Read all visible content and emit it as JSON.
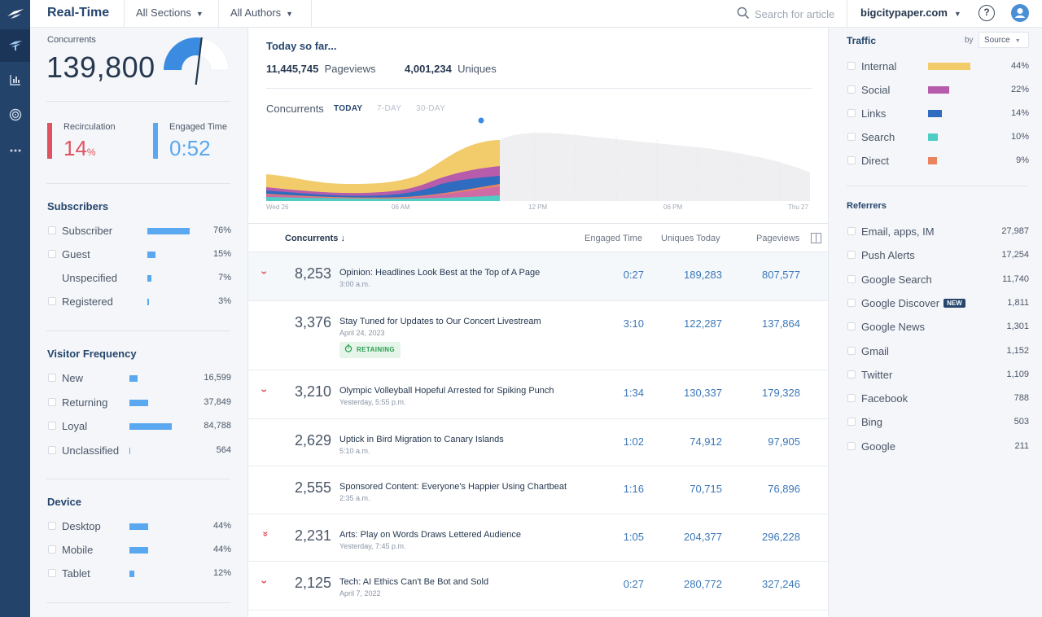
{
  "app": {
    "title": "Real-Time"
  },
  "topbar": {
    "sections_label": "All Sections",
    "authors_label": "All Authors",
    "search_placeholder": "Search for article",
    "site_label": "bigcitypaper.com",
    "help_label": "?"
  },
  "left": {
    "concurrents_label": "Concurrents",
    "concurrents_value": "139,800",
    "gauge_level": 0.55,
    "recirculation_label": "Recirculation",
    "recirculation_value": "14",
    "recirculation_unit": "%",
    "engaged_label": "Engaged Time",
    "engaged_value": "0:52",
    "subscribers": {
      "title": "Subscribers",
      "rows": [
        {
          "label": "Subscriber",
          "value": "76%",
          "fill": 0.76
        },
        {
          "label": "Guest",
          "value": "15%",
          "fill": 0.15
        },
        {
          "label": "Unspecified",
          "value": "7%",
          "fill": 0.07
        },
        {
          "label": "Registered",
          "value": "3%",
          "fill": 0.03
        }
      ]
    },
    "frequency": {
      "title": "Visitor Frequency",
      "rows": [
        {
          "label": "New",
          "value": "16,599",
          "fill": 0.2
        },
        {
          "label": "Returning",
          "value": "37,849",
          "fill": 0.45
        },
        {
          "label": "Loyal",
          "value": "84,788",
          "fill": 1.0
        },
        {
          "label": "Unclassified",
          "value": "564",
          "fill": 0.01
        }
      ]
    },
    "device": {
      "title": "Device",
      "rows": [
        {
          "label": "Desktop",
          "value": "44%",
          "fill": 0.44
        },
        {
          "label": "Mobile",
          "value": "44%",
          "fill": 0.44
        },
        {
          "label": "Tablet",
          "value": "12%",
          "fill": 0.12
        }
      ]
    }
  },
  "center": {
    "today_title": "Today so far...",
    "pageviews_value": "11,445,745",
    "pageviews_label": "Pageviews",
    "uniques_value": "4,001,234",
    "uniques_label": "Uniques",
    "chart_title": "Concurrents",
    "range_tabs": [
      "TODAY",
      "7-DAY",
      "30-DAY"
    ],
    "x_ticks": [
      "Wed 26",
      "06 AM",
      "12 PM",
      "06 PM",
      "Thu 27"
    ],
    "table": {
      "headers": {
        "concurrents": "Concurrents",
        "engaged": "Engaged Time",
        "uniques": "Uniques Today",
        "pageviews": "Pageviews"
      },
      "rows": [
        {
          "concurrents": "8,253",
          "title": "Opinion: Headlines Look Best at the Top of A Page",
          "time": "3:00 a.m.",
          "engaged": "0:27",
          "uniques": "189,283",
          "pageviews": "807,577"
        },
        {
          "concurrents": "3,376",
          "title": "Stay Tuned for Updates to Our Concert Livestream",
          "time": "April 24, 2023",
          "badge": "RETAINING",
          "engaged": "3:10",
          "uniques": "122,287",
          "pageviews": "137,864"
        },
        {
          "concurrents": "3,210",
          "title": "Olympic Volleyball Hopeful Arrested for Spiking Punch",
          "time": "Yesterday, 5:55 p.m.",
          "engaged": "1:34",
          "uniques": "130,337",
          "pageviews": "179,328"
        },
        {
          "concurrents": "2,629",
          "title": "Uptick in Bird Migration to Canary Islands",
          "time": "5:10 a.m.",
          "engaged": "1:02",
          "uniques": "74,912",
          "pageviews": "97,905"
        },
        {
          "concurrents": "2,555",
          "title": "Sponsored Content: Everyone's Happier Using Chartbeat",
          "time": "2:35 a.m.",
          "engaged": "1:16",
          "uniques": "70,715",
          "pageviews": "76,896"
        },
        {
          "concurrents": "2,231",
          "title": "Arts: Play on Words Draws Lettered Audience",
          "time": "Yesterday, 7:45 p.m.",
          "engaged": "1:05",
          "uniques": "204,377",
          "pageviews": "296,228"
        },
        {
          "concurrents": "2,125",
          "title": "Tech: AI Ethics Can't Be Bot and Sold",
          "time": "April 7, 2022",
          "engaged": "0:27",
          "uniques": "280,772",
          "pageviews": "327,246"
        }
      ]
    }
  },
  "right": {
    "traffic_title": "Traffic",
    "by_label": "by",
    "source_label": "Source",
    "traffic_rows": [
      {
        "label": "Internal",
        "value": "44%",
        "fill": 0.44,
        "color": "#f2cc6b"
      },
      {
        "label": "Social",
        "value": "22%",
        "fill": 0.22,
        "color": "#b65cab"
      },
      {
        "label": "Links",
        "value": "14%",
        "fill": 0.14,
        "color": "#2f6cc0"
      },
      {
        "label": "Search",
        "value": "10%",
        "fill": 0.1,
        "color": "#4ecdc4"
      },
      {
        "label": "Direct",
        "value": "9%",
        "fill": 0.09,
        "color": "#e9845f"
      }
    ],
    "referrers_title": "Referrers",
    "new_badge": "NEW",
    "referrers": [
      {
        "label": "Email, apps, IM",
        "value": "27,987"
      },
      {
        "label": "Push Alerts",
        "value": "17,254"
      },
      {
        "label": "Google Search",
        "value": "11,740"
      },
      {
        "label": "Google Discover",
        "value": "1,811",
        "badge": true
      },
      {
        "label": "Google News",
        "value": "1,301"
      },
      {
        "label": "Gmail",
        "value": "1,152"
      },
      {
        "label": "Twitter",
        "value": "1,109"
      },
      {
        "label": "Facebook",
        "value": "788"
      },
      {
        "label": "Bing",
        "value": "503"
      },
      {
        "label": "Google",
        "value": "211"
      }
    ]
  },
  "colors": {
    "brand": "#26466d",
    "recirculation": "#e0525f",
    "engaged": "#5aa8f0",
    "accent_blue": "#3b77b8",
    "retaining": "#2a9d4f"
  },
  "icons": {
    "rail": [
      "logo-icon",
      "realtime-icon",
      "bar-chart-icon",
      "target-icon",
      "more-icon"
    ]
  }
}
